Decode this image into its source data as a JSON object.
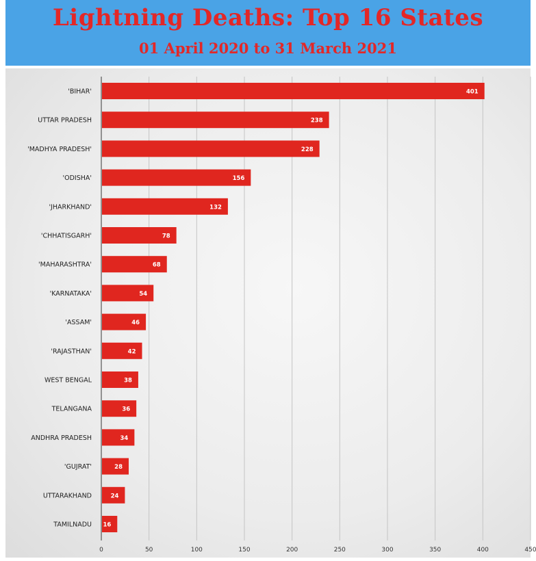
{
  "header": {
    "title": "Lightning Deaths: Top 16 States",
    "subtitle": "01 April 2020 to 31 March 2021"
  },
  "colors": {
    "header_bg": "#4aa3e6",
    "title_text": "#e32727",
    "bar": "#e0261f"
  },
  "chart_data": {
    "type": "bar",
    "orientation": "horizontal",
    "title": "Lightning Deaths: Top 16 States",
    "subtitle": "01 April 2020 to 31 March 2021",
    "categories": [
      "'BIHAR'",
      "UTTAR PRADESH",
      "'MADHYA PRADESH'",
      "'ODISHA'",
      "'JHARKHAND'",
      "'CHHATISGARH'",
      "'MAHARASHTRA'",
      "'KARNATAKA'",
      "'ASSAM'",
      "'RAJASTHAN'",
      "WEST BENGAL",
      "TELANGANA",
      "ANDHRA PRADESH",
      "'GUJRAT'",
      "UTTARAKHAND",
      "TAMILNADU"
    ],
    "values": [
      401,
      238,
      228,
      156,
      132,
      78,
      68,
      54,
      46,
      42,
      38,
      36,
      34,
      28,
      24,
      16
    ],
    "value_labels": [
      "401",
      "238",
      "228",
      "156",
      "132",
      "78",
      "68",
      "54",
      "46",
      "42",
      "38",
      "36",
      "34",
      "28",
      "24",
      "16"
    ],
    "xticks": [
      "0",
      "50",
      "100",
      "150",
      "200",
      "250",
      "300",
      "350",
      "400",
      "450"
    ],
    "xlim": [
      0,
      450
    ],
    "grid": "vertical",
    "legend": "none"
  }
}
